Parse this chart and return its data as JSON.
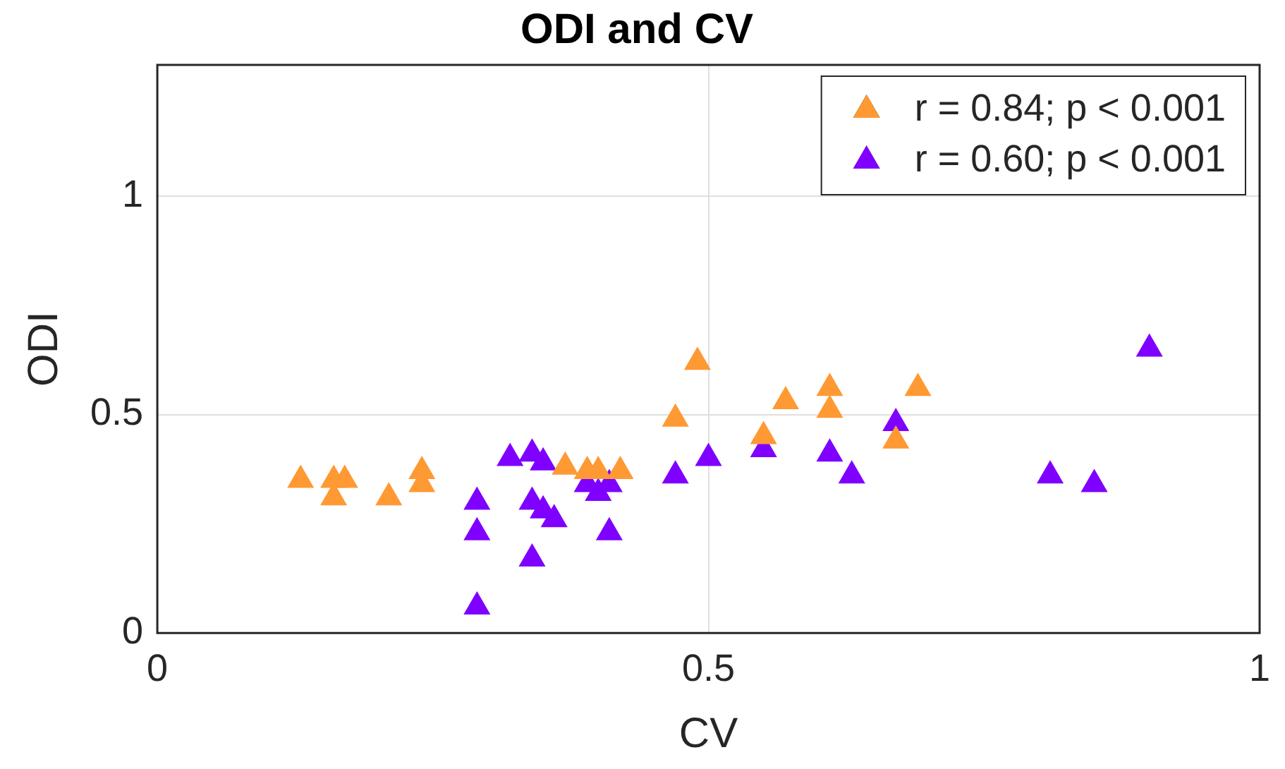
{
  "chart_data": {
    "type": "scatter",
    "title": "ODI and CV",
    "xlabel": "CV",
    "ylabel": "ODI",
    "xlim": [
      0,
      1
    ],
    "xticks": [
      0,
      0.5,
      1
    ],
    "ylim": [
      0,
      1.3
    ],
    "yticks": [
      0,
      0.5,
      1
    ],
    "grid": true,
    "legend": "top right",
    "marker": "triangle",
    "series": [
      {
        "name": "r = 0.84; p < 0.001",
        "color": "#ff9933",
        "x": [
          0.13,
          0.16,
          0.16,
          0.17,
          0.21,
          0.24,
          0.24,
          0.37,
          0.39,
          0.4,
          0.42,
          0.47,
          0.49,
          0.55,
          0.57,
          0.61,
          0.61,
          0.67,
          0.69
        ],
        "values": [
          0.35,
          0.31,
          0.35,
          0.35,
          0.31,
          0.37,
          0.34,
          0.38,
          0.37,
          0.37,
          0.37,
          0.49,
          0.62,
          0.45,
          0.53,
          0.51,
          0.56,
          0.44,
          0.56
        ]
      },
      {
        "name": "r = 0.60; p < 0.001",
        "color": "#7f00ff",
        "x": [
          0.29,
          0.29,
          0.29,
          0.32,
          0.34,
          0.34,
          0.34,
          0.35,
          0.36,
          0.35,
          0.38,
          0.39,
          0.4,
          0.41,
          0.41,
          0.47,
          0.5,
          0.55,
          0.61,
          0.63,
          0.67,
          0.81,
          0.85,
          0.9
        ],
        "values": [
          0.3,
          0.23,
          0.06,
          0.4,
          0.41,
          0.3,
          0.17,
          0.39,
          0.26,
          0.28,
          null,
          0.34,
          0.32,
          0.34,
          0.23,
          0.36,
          0.4,
          0.42,
          0.41,
          0.36,
          0.48,
          0.36,
          0.34,
          0.65
        ]
      }
    ]
  }
}
